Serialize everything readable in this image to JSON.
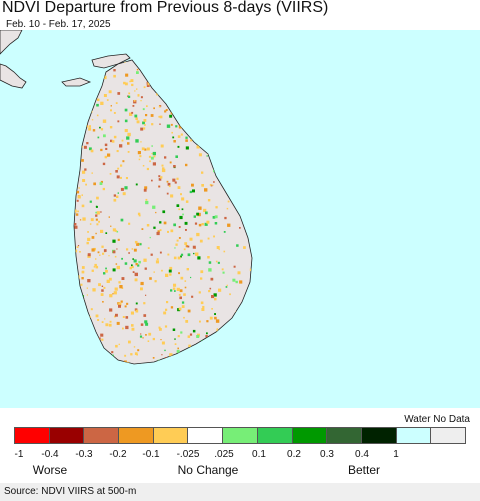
{
  "header": {
    "title": "NDVI Departure from Previous 8-days (VIIRS)",
    "subtitle": "Feb. 10 - Feb. 17, 2025"
  },
  "map": {
    "ocean_color": "#ccffff",
    "land_base_color": "#e9e4e4"
  },
  "legend": {
    "extra_label": "Water No Data",
    "colors": [
      "#ff0000",
      "#990000",
      "#cc6644",
      "#ee9922",
      "#ffcc55",
      "#ffffff",
      "#77ee77",
      "#33cc55",
      "#009900",
      "#336633",
      "#002200",
      "#ccffff",
      "#eeeeee"
    ],
    "ticks": [
      "-1",
      "-0.4",
      "-0.3",
      "-0.2",
      "-0.1",
      "-.025",
      ".025",
      "0.1",
      "0.2",
      "0.3",
      "0.4",
      "1"
    ],
    "categories": [
      "Worse",
      "No Change",
      "Better"
    ]
  },
  "footer": {
    "source": "Source: NDVI VIIRS at 500-m"
  }
}
